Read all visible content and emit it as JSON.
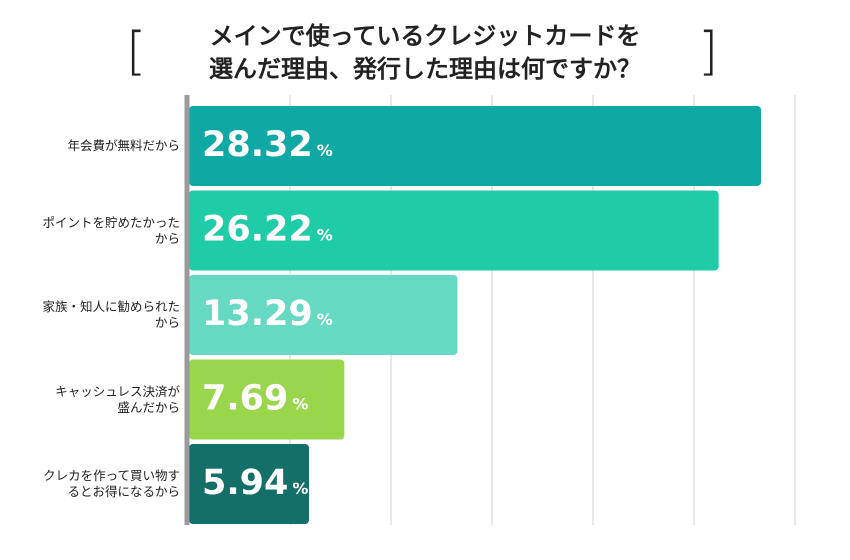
{
  "chart_data": {
    "type": "bar",
    "orientation": "horizontal",
    "title": "メインで使っているクレジットカードを\n選んだ理由、発行した理由は何ですか？",
    "title_bracket_left": "[",
    "title_bracket_right": "]",
    "categories": [
      "年会費が無料だから",
      "ポイントを貯めたかった\nから",
      "家族・知人に勧められた\nから",
      "キャッシュレス決済が\n盛んだから",
      "クレカを作って買い物す\nるとお得になるから"
    ],
    "values": [
      28.32,
      26.22,
      13.29,
      7.69,
      5.94
    ],
    "value_labels": [
      "28.32",
      "26.22",
      "13.29",
      "7.69",
      "5.94"
    ],
    "unit": "%",
    "colors": [
      "#0fa8a5",
      "#20cba7",
      "#66d9c3",
      "#9ad64c",
      "#136f68"
    ],
    "xlim": [
      0,
      30
    ],
    "grid": true,
    "legend": "none"
  }
}
